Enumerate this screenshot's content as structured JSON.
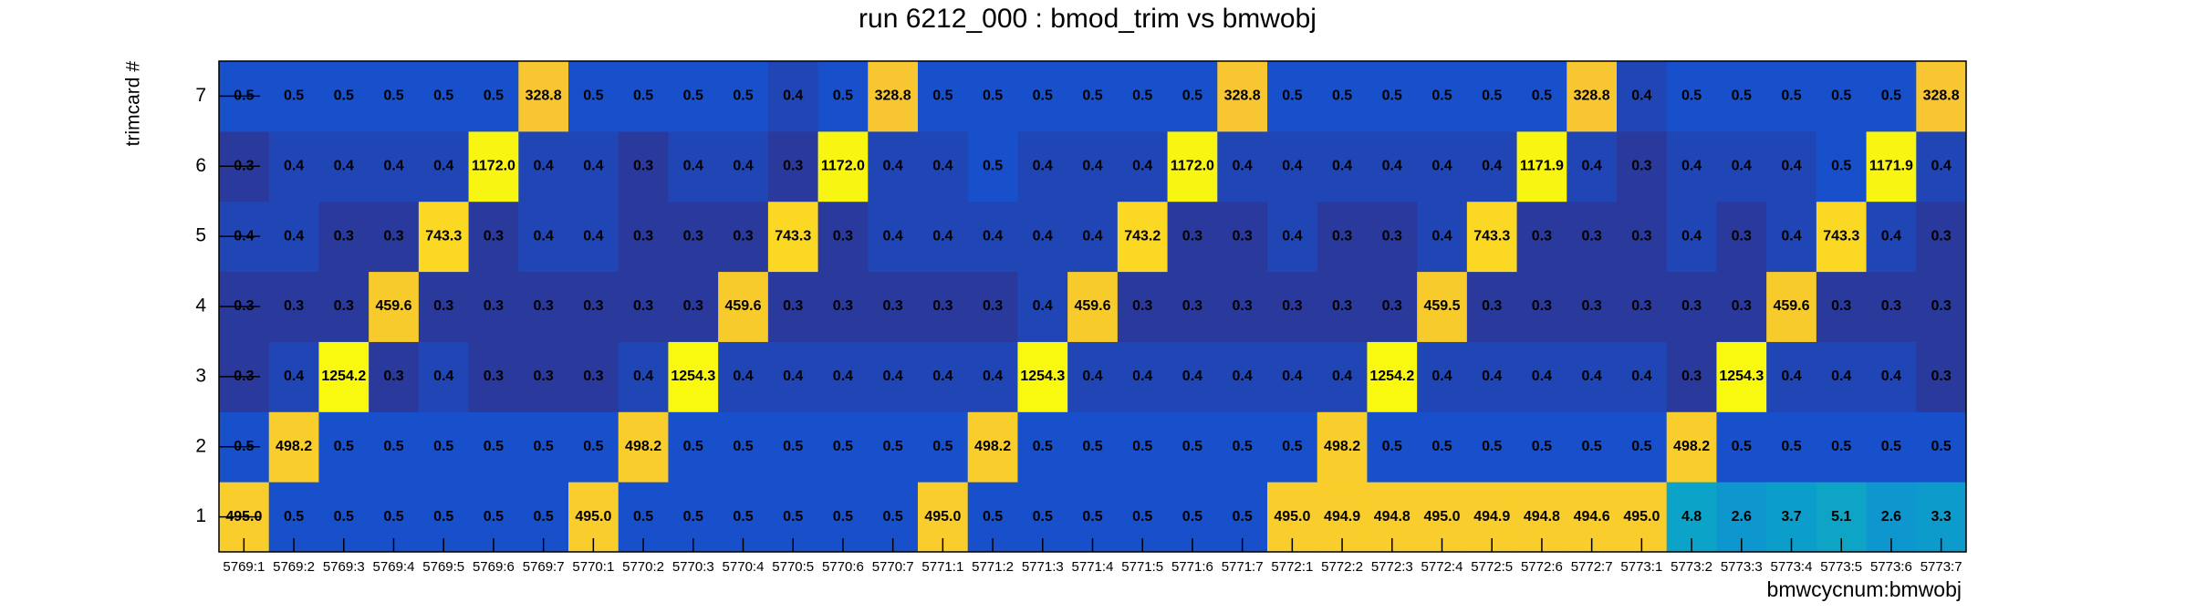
{
  "chart_data": {
    "type": "heatmap",
    "title": "run 6212_000 : bmod_trim vs bmwobj",
    "x_label": "bmwcycnum:bmwobj",
    "y_label": "trimcard #",
    "categories": [
      "5769:1",
      "5769:2",
      "5769:3",
      "5769:4",
      "5769:5",
      "5769:6",
      "5769:7",
      "5770:1",
      "5770:2",
      "5770:3",
      "5770:4",
      "5770:5",
      "5770:6",
      "5770:7",
      "5771:1",
      "5771:2",
      "5771:3",
      "5771:4",
      "5771:5",
      "5771:6",
      "5771:7",
      "5772:1",
      "5772:2",
      "5772:3",
      "5772:4",
      "5772:5",
      "5772:6",
      "5772:7",
      "5773:1",
      "5773:2",
      "5773:3",
      "5773:4",
      "5773:5",
      "5773:6",
      "5773:7"
    ],
    "y_categories": [
      1,
      2,
      3,
      4,
      5,
      6,
      7
    ],
    "values": [
      [
        495.0,
        0.5,
        0.5,
        0.5,
        0.5,
        0.5,
        0.5,
        495.0,
        0.5,
        0.5,
        0.5,
        0.5,
        0.5,
        0.5,
        495.0,
        0.5,
        0.5,
        0.5,
        0.5,
        0.5,
        0.5,
        495.0,
        494.9,
        494.8,
        495.0,
        494.9,
        494.8,
        494.6,
        495.0,
        4.8,
        2.6,
        3.7,
        5.1,
        2.6,
        3.3
      ],
      [
        0.5,
        498.2,
        0.5,
        0.5,
        0.5,
        0.5,
        0.5,
        0.5,
        498.2,
        0.5,
        0.5,
        0.5,
        0.5,
        0.5,
        0.5,
        498.2,
        0.5,
        0.5,
        0.5,
        0.5,
        0.5,
        0.5,
        498.2,
        0.5,
        0.5,
        0.5,
        0.5,
        0.5,
        0.5,
        498.2,
        0.5,
        0.5,
        0.5,
        0.5,
        0.5
      ],
      [
        0.3,
        0.4,
        1254.2,
        0.3,
        0.4,
        0.3,
        0.3,
        0.3,
        0.4,
        1254.3,
        0.4,
        0.4,
        0.4,
        0.4,
        0.4,
        0.4,
        1254.3,
        0.4,
        0.4,
        0.4,
        0.4,
        0.4,
        0.4,
        1254.2,
        0.4,
        0.4,
        0.4,
        0.4,
        0.4,
        0.3,
        1254.3,
        0.4,
        0.4,
        0.4,
        0.3
      ],
      [
        0.3,
        0.3,
        0.3,
        459.6,
        0.3,
        0.3,
        0.3,
        0.3,
        0.3,
        0.3,
        459.6,
        0.3,
        0.3,
        0.3,
        0.3,
        0.3,
        0.4,
        459.6,
        0.3,
        0.3,
        0.3,
        0.3,
        0.3,
        0.3,
        459.5,
        0.3,
        0.3,
        0.3,
        0.3,
        0.3,
        0.3,
        459.6,
        0.3,
        0.3,
        0.3
      ],
      [
        0.4,
        0.4,
        0.3,
        0.3,
        743.3,
        0.3,
        0.4,
        0.4,
        0.3,
        0.3,
        0.3,
        743.3,
        0.3,
        0.4,
        0.4,
        0.4,
        0.4,
        0.4,
        743.2,
        0.3,
        0.3,
        0.4,
        0.3,
        0.3,
        0.4,
        743.3,
        0.3,
        0.3,
        0.3,
        0.4,
        0.3,
        0.4,
        743.3,
        0.4,
        0.3
      ],
      [
        0.3,
        0.4,
        0.4,
        0.4,
        0.4,
        1172.0,
        0.4,
        0.4,
        0.3,
        0.4,
        0.4,
        0.3,
        1172.0,
        0.4,
        0.4,
        0.5,
        0.4,
        0.4,
        0.4,
        1172.0,
        0.4,
        0.4,
        0.4,
        0.4,
        0.4,
        0.4,
        1171.9,
        0.4,
        0.3,
        0.4,
        0.4,
        0.4,
        0.5,
        1171.9,
        0.4
      ],
      [
        0.5,
        0.5,
        0.5,
        0.5,
        0.5,
        0.5,
        328.8,
        0.5,
        0.5,
        0.5,
        0.5,
        0.4,
        0.5,
        328.8,
        0.5,
        0.5,
        0.5,
        0.5,
        0.5,
        0.5,
        328.8,
        0.5,
        0.5,
        0.5,
        0.5,
        0.5,
        0.5,
        328.8,
        0.4,
        0.5,
        0.5,
        0.5,
        0.5,
        0.5,
        328.8
      ]
    ],
    "value_labels": [
      [
        "495.0",
        "0.5",
        "0.5",
        "0.5",
        "0.5",
        "0.5",
        "0.5",
        "495.0",
        "0.5",
        "0.5",
        "0.5",
        "0.5",
        "0.5",
        "0.5",
        "495.0",
        "0.5",
        "0.5",
        "0.5",
        "0.5",
        "0.5",
        "0.5",
        "495.0",
        "494.9",
        "494.8",
        "495.0",
        "494.9",
        "494.8",
        "494.6",
        "495.0",
        "4.8",
        "2.6",
        "3.7",
        "5.1",
        "2.6",
        "3.3"
      ],
      [
        "0.5",
        "498.2",
        "0.5",
        "0.5",
        "0.5",
        "0.5",
        "0.5",
        "0.5",
        "498.2",
        "0.5",
        "0.5",
        "0.5",
        "0.5",
        "0.5",
        "0.5",
        "498.2",
        "0.5",
        "0.5",
        "0.5",
        "0.5",
        "0.5",
        "0.5",
        "498.2",
        "0.5",
        "0.5",
        "0.5",
        "0.5",
        "0.5",
        "0.5",
        "498.2",
        "0.5",
        "0.5",
        "0.5",
        "0.5",
        "0.5"
      ],
      [
        "0.3",
        "0.4",
        "1254.2",
        "0.3",
        "0.4",
        "0.3",
        "0.3",
        "0.3",
        "0.4",
        "1254.3",
        "0.4",
        "0.4",
        "0.4",
        "0.4",
        "0.4",
        "0.4",
        "1254.3",
        "0.4",
        "0.4",
        "0.4",
        "0.4",
        "0.4",
        "0.4",
        "1254.2",
        "0.4",
        "0.4",
        "0.4",
        "0.4",
        "0.4",
        "0.3",
        "1254.3",
        "0.4",
        "0.4",
        "0.4",
        "0.3"
      ],
      [
        "0.3",
        "0.3",
        "0.3",
        "459.6",
        "0.3",
        "0.3",
        "0.3",
        "0.3",
        "0.3",
        "0.3",
        "459.6",
        "0.3",
        "0.3",
        "0.3",
        "0.3",
        "0.3",
        "0.4",
        "459.6",
        "0.3",
        "0.3",
        "0.3",
        "0.3",
        "0.3",
        "0.3",
        "459.5",
        "0.3",
        "0.3",
        "0.3",
        "0.3",
        "0.3",
        "0.3",
        "459.6",
        "0.3",
        "0.3",
        "0.3"
      ],
      [
        "0.4",
        "0.4",
        "0.3",
        "0.3",
        "743.3",
        "0.3",
        "0.4",
        "0.4",
        "0.3",
        "0.3",
        "0.3",
        "743.3",
        "0.3",
        "0.4",
        "0.4",
        "0.4",
        "0.4",
        "0.4",
        "743.2",
        "0.3",
        "0.3",
        "0.4",
        "0.3",
        "0.3",
        "0.4",
        "743.3",
        "0.3",
        "0.3",
        "0.3",
        "0.4",
        "0.3",
        "0.4",
        "743.3",
        "0.4",
        "0.3"
      ],
      [
        "0.3",
        "0.4",
        "0.4",
        "0.4",
        "0.4",
        "1172.0",
        "0.4",
        "0.4",
        "0.3",
        "0.4",
        "0.4",
        "0.3",
        "1172.0",
        "0.4",
        "0.4",
        "0.5",
        "0.4",
        "0.4",
        "0.4",
        "1172.0",
        "0.4",
        "0.4",
        "0.4",
        "0.4",
        "0.4",
        "0.4",
        "1171.9",
        "0.4",
        "0.3",
        "0.4",
        "0.4",
        "0.4",
        "0.5",
        "1171.9",
        "0.4"
      ],
      [
        "0.5",
        "0.5",
        "0.5",
        "0.5",
        "0.5",
        "0.5",
        "328.8",
        "0.5",
        "0.5",
        "0.5",
        "0.5",
        "0.4",
        "0.5",
        "328.8",
        "0.5",
        "0.5",
        "0.5",
        "0.5",
        "0.5",
        "0.5",
        "328.8",
        "0.5",
        "0.5",
        "0.5",
        "0.5",
        "0.5",
        "0.5",
        "328.8",
        "0.4",
        "0.5",
        "0.5",
        "0.5",
        "0.5",
        "0.5",
        "328.8"
      ]
    ],
    "zlog": true,
    "palette": [
      "#2a3a9c",
      "#1652cf",
      "#1566d6",
      "#0d86d4",
      "#0e98cd",
      "#0ba3c8",
      "#2fb0b0",
      "#60b890",
      "#90bc70",
      "#b8bc55",
      "#dcbb45",
      "#f0bf38",
      "#f6c234",
      "#f8c82e",
      "#fad625",
      "#f9f90f"
    ]
  }
}
